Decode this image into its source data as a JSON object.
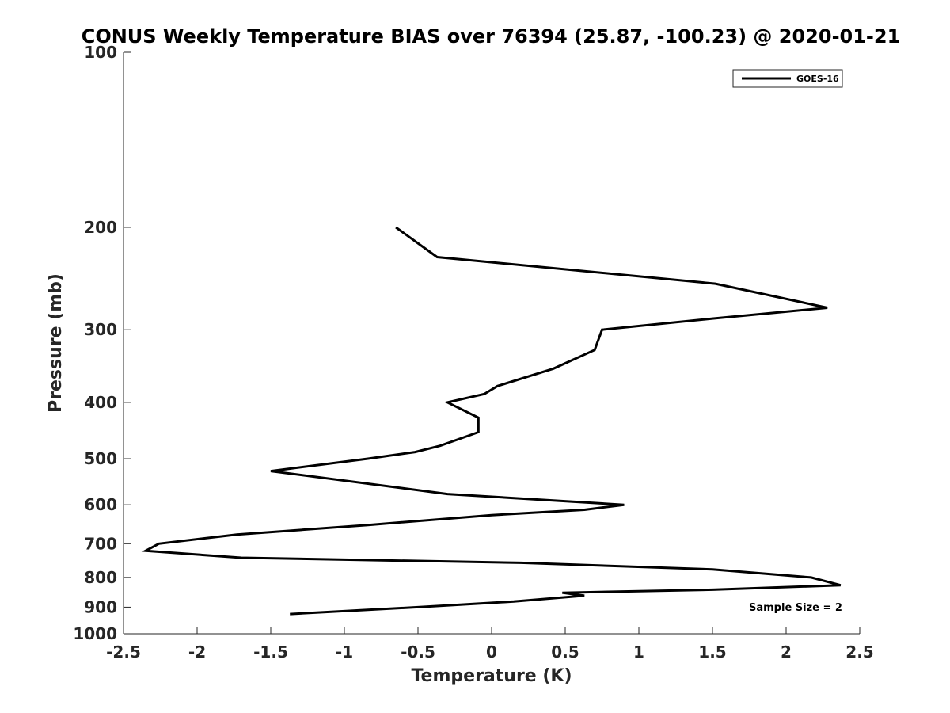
{
  "chart_data": {
    "type": "line",
    "title": "CONUS Weekly Temperature BIAS over 76394 (25.87, -100.23) @ 2020-01-21",
    "xlabel": "Temperature (K)",
    "ylabel": "Pressure (mb)",
    "xlim": [
      -2.5,
      2.5
    ],
    "ylim": [
      100,
      1000
    ],
    "y_scale": "log",
    "y_reversed": true,
    "x_ticks": [
      "-2.5",
      "-2",
      "-1.5",
      "-1",
      "-0.5",
      "0",
      "0.5",
      "1",
      "1.5",
      "2",
      "2.5"
    ],
    "y_ticks": [
      "100",
      "200",
      "300",
      "400",
      "500",
      "600",
      "700",
      "800",
      "900",
      "1000"
    ],
    "grid": false,
    "legend": {
      "position": "top-right",
      "entries": [
        "GOES-16"
      ]
    },
    "annotation": "Sample Size = 2",
    "line_color": "#000000",
    "series": [
      {
        "name": "GOES-16",
        "points": [
          [
            -0.65,
            200
          ],
          [
            -0.37,
            225
          ],
          [
            1.52,
            250
          ],
          [
            2.28,
            275
          ],
          [
            1.5,
            287
          ],
          [
            0.75,
            300
          ],
          [
            0.7,
            325
          ],
          [
            0.42,
            350
          ],
          [
            0.04,
            375
          ],
          [
            -0.05,
            387
          ],
          [
            -0.3,
            400
          ],
          [
            -0.09,
            425
          ],
          [
            -0.09,
            450
          ],
          [
            -0.35,
            475
          ],
          [
            -0.52,
            487
          ],
          [
            -0.84,
            500
          ],
          [
            -1.5,
            525
          ],
          [
            -0.3,
            575
          ],
          [
            0.9,
            600
          ],
          [
            0.63,
            612
          ],
          [
            0.0,
            625
          ],
          [
            -0.84,
            650
          ],
          [
            -1.73,
            675
          ],
          [
            -2.26,
            700
          ],
          [
            -2.35,
            720
          ],
          [
            -1.7,
            740
          ],
          [
            0.2,
            755
          ],
          [
            1.5,
            775
          ],
          [
            2.17,
            800
          ],
          [
            2.37,
            825
          ],
          [
            1.5,
            840
          ],
          [
            0.48,
            850
          ],
          [
            0.63,
            860
          ],
          [
            0.15,
            880
          ],
          [
            -0.5,
            900
          ],
          [
            -1.37,
            925
          ]
        ]
      }
    ]
  }
}
